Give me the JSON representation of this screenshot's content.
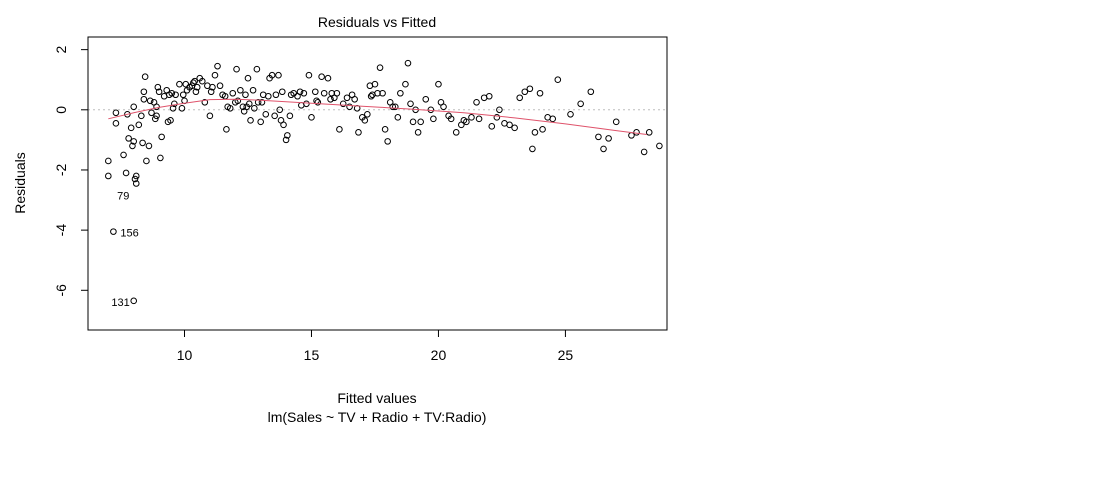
{
  "chart_data": {
    "type": "scatter",
    "title": "Residuals vs Fitted",
    "xlabel": "Fitted values",
    "subtitle": "lm(Sales ~ TV + Radio + TV:Radio)",
    "ylabel": "Residuals",
    "xlim": [
      6.2,
      29.0
    ],
    "ylim": [
      -7.32,
      2.42
    ],
    "x_ticks": [
      10,
      15,
      20,
      25
    ],
    "y_ticks": [
      -6,
      -4,
      -2,
      0,
      2
    ],
    "grid": false,
    "reference_line": {
      "y": 0,
      "style": "dotted",
      "color": "#bebebe"
    },
    "colors": {
      "points": "#000000",
      "smooth": "#df536b",
      "reference": "#bebebe"
    },
    "points": [
      [
        7.0,
        -2.2
      ],
      [
        7.0,
        -1.7
      ],
      [
        7.3,
        -0.45
      ],
      [
        7.3,
        -0.1
      ],
      [
        7.6,
        -1.5
      ],
      [
        7.7,
        -2.1
      ],
      [
        7.75,
        -0.15
      ],
      [
        7.8,
        -0.95
      ],
      [
        7.9,
        -0.6
      ],
      [
        7.95,
        -1.2
      ],
      [
        8.0,
        -1.05
      ],
      [
        8.0,
        0.1
      ],
      [
        8.05,
        -2.3
      ],
      [
        8.1,
        -2.2
      ],
      [
        8.1,
        -2.45
      ],
      [
        8.2,
        -0.5
      ],
      [
        8.3,
        -0.2
      ],
      [
        8.35,
        -1.1
      ],
      [
        8.4,
        0.6
      ],
      [
        8.4,
        0.35
      ],
      [
        8.45,
        1.1
      ],
      [
        8.5,
        -1.7
      ],
      [
        8.6,
        -1.2
      ],
      [
        8.65,
        0.3
      ],
      [
        8.7,
        -0.1
      ],
      [
        8.8,
        0.25
      ],
      [
        8.85,
        -0.3
      ],
      [
        8.9,
        -0.2
      ],
      [
        8.9,
        0.1
      ],
      [
        8.95,
        0.75
      ],
      [
        9.0,
        0.6
      ],
      [
        9.05,
        -1.6
      ],
      [
        9.1,
        -0.9
      ],
      [
        9.2,
        0.45
      ],
      [
        9.3,
        0.65
      ],
      [
        9.35,
        -0.4
      ],
      [
        9.4,
        0.5
      ],
      [
        9.45,
        -0.35
      ],
      [
        9.5,
        0.55
      ],
      [
        9.55,
        0.05
      ],
      [
        9.6,
        0.2
      ],
      [
        9.65,
        0.5
      ],
      [
        9.8,
        0.85
      ],
      [
        9.9,
        0.05
      ],
      [
        9.95,
        0.5
      ],
      [
        10.0,
        0.3
      ],
      [
        10.05,
        0.85
      ],
      [
        10.1,
        0.65
      ],
      [
        10.2,
        0.75
      ],
      [
        10.3,
        0.8
      ],
      [
        10.35,
        0.9
      ],
      [
        10.4,
        0.95
      ],
      [
        10.45,
        0.6
      ],
      [
        10.5,
        0.75
      ],
      [
        10.6,
        1.05
      ],
      [
        10.7,
        0.95
      ],
      [
        10.8,
        0.25
      ],
      [
        10.9,
        0.8
      ],
      [
        11.0,
        -0.2
      ],
      [
        11.05,
        0.6
      ],
      [
        11.1,
        0.75
      ],
      [
        11.2,
        1.15
      ],
      [
        11.3,
        1.45
      ],
      [
        11.4,
        0.8
      ],
      [
        11.5,
        0.5
      ],
      [
        11.6,
        0.45
      ],
      [
        11.65,
        -0.65
      ],
      [
        11.7,
        0.1
      ],
      [
        11.8,
        0.05
      ],
      [
        11.9,
        0.55
      ],
      [
        12.0,
        0.25
      ],
      [
        12.05,
        1.35
      ],
      [
        12.1,
        0.3
      ],
      [
        12.2,
        0.65
      ],
      [
        12.3,
        0.1
      ],
      [
        12.35,
        -0.05
      ],
      [
        12.4,
        0.5
      ],
      [
        12.45,
        0.1
      ],
      [
        12.5,
        1.05
      ],
      [
        12.55,
        0.2
      ],
      [
        12.6,
        -0.35
      ],
      [
        12.7,
        0.65
      ],
      [
        12.75,
        0.05
      ],
      [
        12.85,
        1.35
      ],
      [
        12.9,
        0.25
      ],
      [
        13.0,
        -0.4
      ],
      [
        13.05,
        0.25
      ],
      [
        13.1,
        0.5
      ],
      [
        13.2,
        -0.15
      ],
      [
        13.3,
        0.45
      ],
      [
        13.35,
        1.05
      ],
      [
        13.45,
        1.15
      ],
      [
        13.55,
        -0.2
      ],
      [
        13.6,
        0.5
      ],
      [
        13.7,
        1.15
      ],
      [
        13.75,
        0.0
      ],
      [
        13.8,
        -0.35
      ],
      [
        13.85,
        0.6
      ],
      [
        13.9,
        -0.5
      ],
      [
        14.0,
        -1.0
      ],
      [
        14.05,
        -0.85
      ],
      [
        14.15,
        -0.2
      ],
      [
        14.2,
        0.5
      ],
      [
        14.3,
        0.55
      ],
      [
        14.45,
        0.45
      ],
      [
        14.55,
        0.6
      ],
      [
        14.6,
        0.15
      ],
      [
        14.7,
        0.55
      ],
      [
        14.8,
        0.2
      ],
      [
        14.9,
        1.15
      ],
      [
        15.0,
        -0.25
      ],
      [
        15.15,
        0.6
      ],
      [
        15.2,
        0.3
      ],
      [
        15.25,
        0.25
      ],
      [
        15.4,
        1.1
      ],
      [
        15.5,
        0.55
      ],
      [
        15.65,
        1.05
      ],
      [
        15.75,
        0.35
      ],
      [
        15.8,
        0.55
      ],
      [
        15.9,
        0.4
      ],
      [
        16.0,
        0.55
      ],
      [
        16.1,
        -0.65
      ],
      [
        16.25,
        0.2
      ],
      [
        16.4,
        0.4
      ],
      [
        16.5,
        0.1
      ],
      [
        16.6,
        0.5
      ],
      [
        16.7,
        0.35
      ],
      [
        16.8,
        0.05
      ],
      [
        16.85,
        -0.75
      ],
      [
        17.0,
        -0.25
      ],
      [
        17.1,
        -0.35
      ],
      [
        17.2,
        -0.15
      ],
      [
        17.3,
        0.8
      ],
      [
        17.35,
        0.45
      ],
      [
        17.4,
        0.5
      ],
      [
        17.5,
        0.85
      ],
      [
        17.6,
        0.55
      ],
      [
        17.7,
        1.4
      ],
      [
        17.8,
        0.55
      ],
      [
        17.9,
        -0.65
      ],
      [
        18.0,
        -1.05
      ],
      [
        18.1,
        0.25
      ],
      [
        18.2,
        0.1
      ],
      [
        18.3,
        0.1
      ],
      [
        18.4,
        -0.25
      ],
      [
        18.5,
        0.55
      ],
      [
        18.7,
        0.85
      ],
      [
        18.8,
        1.55
      ],
      [
        18.9,
        0.2
      ],
      [
        19.0,
        -0.4
      ],
      [
        19.1,
        0.0
      ],
      [
        19.2,
        -0.75
      ],
      [
        19.3,
        -0.4
      ],
      [
        19.5,
        0.35
      ],
      [
        19.7,
        0.0
      ],
      [
        19.8,
        -0.3
      ],
      [
        20.0,
        0.85
      ],
      [
        20.1,
        0.25
      ],
      [
        20.2,
        0.1
      ],
      [
        20.4,
        -0.2
      ],
      [
        20.5,
        -0.3
      ],
      [
        20.7,
        -0.75
      ],
      [
        20.9,
        -0.5
      ],
      [
        21.0,
        -0.35
      ],
      [
        21.1,
        -0.4
      ],
      [
        21.3,
        -0.25
      ],
      [
        21.5,
        0.25
      ],
      [
        21.6,
        -0.3
      ],
      [
        21.8,
        0.4
      ],
      [
        22.0,
        0.45
      ],
      [
        22.1,
        -0.55
      ],
      [
        22.3,
        -0.25
      ],
      [
        22.4,
        0.0
      ],
      [
        22.6,
        -0.45
      ],
      [
        22.8,
        -0.5
      ],
      [
        23.0,
        -0.6
      ],
      [
        23.2,
        0.4
      ],
      [
        23.4,
        0.6
      ],
      [
        23.6,
        0.7
      ],
      [
        23.7,
        -1.3
      ],
      [
        23.8,
        -0.75
      ],
      [
        24.0,
        0.55
      ],
      [
        24.1,
        -0.65
      ],
      [
        24.3,
        -0.25
      ],
      [
        24.5,
        -0.3
      ],
      [
        24.7,
        1.0
      ],
      [
        25.2,
        -0.15
      ],
      [
        25.6,
        0.2
      ],
      [
        26.0,
        0.6
      ],
      [
        26.3,
        -0.9
      ],
      [
        26.5,
        -1.3
      ],
      [
        26.7,
        -0.95
      ],
      [
        27.0,
        -0.4
      ],
      [
        27.6,
        -0.85
      ],
      [
        27.8,
        -0.75
      ],
      [
        28.1,
        -1.4
      ],
      [
        28.3,
        -0.75
      ],
      [
        28.7,
        -1.2
      ],
      [
        7.2,
        -4.05
      ],
      [
        8.0,
        -6.35
      ]
    ],
    "smooth_line": [
      [
        7.0,
        -0.3
      ],
      [
        8.0,
        -0.1
      ],
      [
        9.0,
        0.08
      ],
      [
        10.0,
        0.22
      ],
      [
        11.0,
        0.34
      ],
      [
        12.0,
        0.35
      ],
      [
        13.0,
        0.32
      ],
      [
        14.0,
        0.27
      ],
      [
        15.0,
        0.22
      ],
      [
        16.0,
        0.17
      ],
      [
        17.0,
        0.12
      ],
      [
        18.0,
        0.07
      ],
      [
        19.0,
        0.02
      ],
      [
        20.0,
        -0.04
      ],
      [
        21.0,
        -0.1
      ],
      [
        22.0,
        -0.18
      ],
      [
        23.0,
        -0.27
      ],
      [
        24.0,
        -0.37
      ],
      [
        25.0,
        -0.47
      ],
      [
        26.0,
        -0.58
      ],
      [
        27.0,
        -0.69
      ],
      [
        28.2,
        -0.82
      ]
    ],
    "annotations": [
      {
        "label": "79",
        "x": 7.9,
        "y": -2.55
      },
      {
        "label": "156",
        "x": 7.2,
        "y": -4.05
      },
      {
        "label": "131",
        "x": 8.0,
        "y": -6.35
      }
    ]
  }
}
